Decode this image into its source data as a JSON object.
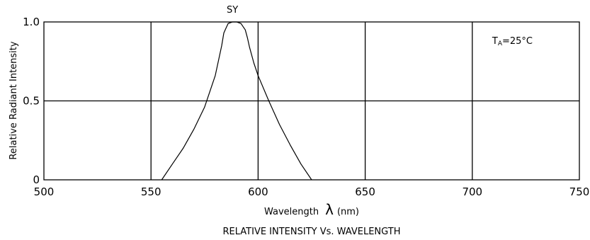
{
  "chart_data": {
    "type": "line",
    "title": "RELATIVE INTENSITY Vs. WAVELENGTH",
    "xlabel": "Wavelength",
    "xlabel_symbol": "λ",
    "xlabel_unit": "(nm)",
    "ylabel": "Relative Radiant Intensity",
    "xlim": [
      500,
      750
    ],
    "ylim": [
      0,
      1.0
    ],
    "x_ticks": [
      500,
      550,
      600,
      650,
      700,
      750
    ],
    "x_tick_labels": [
      "500",
      "550",
      "600",
      "650",
      "700",
      "750"
    ],
    "y_ticks": [
      0,
      0.5,
      1.0
    ],
    "y_tick_labels": [
      "0",
      "0.5",
      "1.0"
    ],
    "grid": true,
    "annotation": {
      "text_main": "T",
      "text_sub": "A",
      "text_rest": "=25°C",
      "placement": "top-right"
    },
    "series": [
      {
        "name": "SY",
        "x": [
          555,
          560,
          565,
          570,
          575,
          580,
          583,
          584,
          585,
          586,
          588,
          590,
          592,
          594,
          595,
          596,
          598,
          600,
          605,
          610,
          615,
          620,
          625
        ],
        "y": [
          0.0,
          0.1,
          0.2,
          0.32,
          0.46,
          0.66,
          0.85,
          0.93,
          0.96,
          0.99,
          1.0,
          1.0,
          0.99,
          0.95,
          0.9,
          0.84,
          0.74,
          0.66,
          0.5,
          0.35,
          0.22,
          0.1,
          0.0
        ]
      }
    ]
  }
}
